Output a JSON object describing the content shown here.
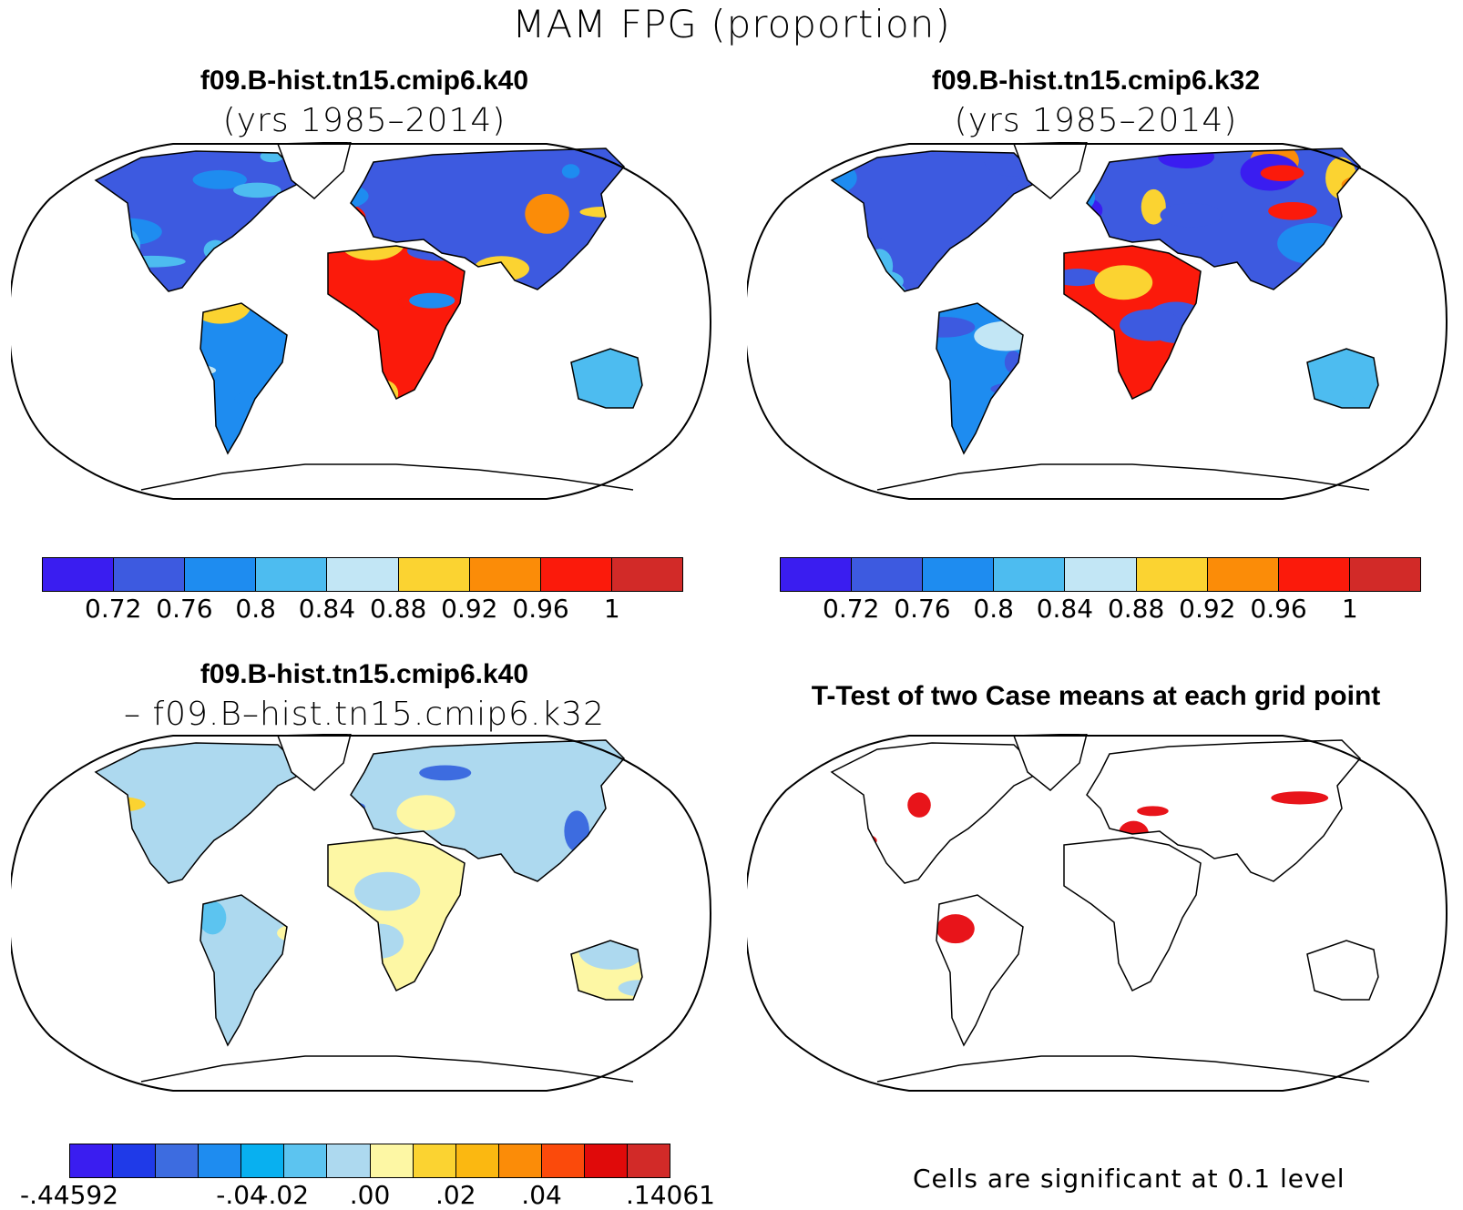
{
  "title": "MAM FPG (proportion)",
  "panels": {
    "top_left": {
      "title": "f09.B-hist.tn15.cmip6.k40",
      "subtitle": "(yrs 1985–2014)"
    },
    "top_right": {
      "title": "f09.B-hist.tn15.cmip6.k32",
      "subtitle": "(yrs 1985–2014)"
    },
    "bottom_left": {
      "title": "f09.B-hist.tn15.cmip6.k40",
      "subtitle": "– f09.B–hist.tn15.cmip6.k32"
    },
    "bottom_right": {
      "title": "T-Test of two Case means at each grid point",
      "note": "Cells are significant at 0.1 level"
    }
  },
  "colorbar_abs": {
    "colors": [
      "#3a1df0",
      "#3d5ae0",
      "#1e8cf0",
      "#4dbcf0",
      "#c2e6f5",
      "#fbd331",
      "#fb8c08",
      "#fb1a0b",
      "#d22a28"
    ],
    "labels": [
      "0.72",
      "0.76",
      "0.8",
      "0.84",
      "0.88",
      "0.92",
      "0.96",
      "1"
    ]
  },
  "colorbar_diff": {
    "colors": [
      "#3a1df0",
      "#1f3ae8",
      "#3d6ce0",
      "#1e8cf0",
      "#08b0f0",
      "#5cc4f0",
      "#add9ef",
      "#fdf7a4",
      "#fbd331",
      "#fbb811",
      "#fb8c08",
      "#fb4a0b",
      "#e00a0a",
      "#d22a28"
    ],
    "labels": [
      "-.44592",
      "-.04",
      "-.02",
      ".00",
      ".02",
      ".04",
      ".14061"
    ]
  }
}
